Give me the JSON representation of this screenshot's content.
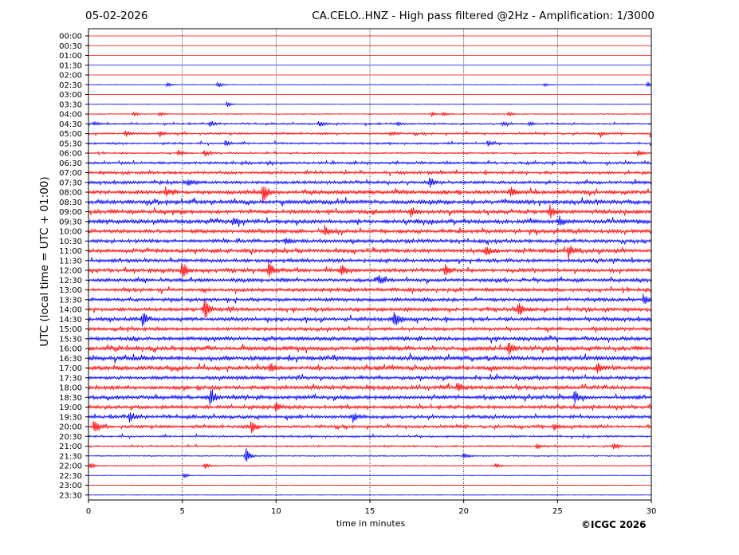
{
  "header": {
    "date": "05-02-2026",
    "title": "CA.CELO..HNZ - High pass filtered @2Hz - Amplification: 1/3000"
  },
  "footer": {
    "copyright": "©ICGC 2026"
  },
  "colors": {
    "red_trace": "#ff0000",
    "blue_trace": "#0000ff",
    "axis": "#000000",
    "grid": "#000000"
  },
  "chart_data": {
    "type": "line",
    "title": "CA.CELO..HNZ - High pass filtered @2Hz - Amplification: 1/3000",
    "xlabel": "time in minutes",
    "ylabel": "UTC (local time = UTC + 01:00)",
    "xlim": [
      0,
      30
    ],
    "x_ticks": [
      "0",
      "5",
      "10",
      "15",
      "20",
      "25",
      "30"
    ],
    "grid": "vertical dotted lines at 5, 10, 15, 20, 25 minutes",
    "rows": [
      "00:00",
      "00:30",
      "01:00",
      "01:30",
      "02:00",
      "02:30",
      "03:00",
      "03:30",
      "04:00",
      "04:30",
      "05:00",
      "05:30",
      "06:00",
      "06:30",
      "07:00",
      "07:30",
      "08:00",
      "08:30",
      "09:00",
      "09:30",
      "10:00",
      "10:30",
      "11:00",
      "11:30",
      "12:00",
      "12:30",
      "13:00",
      "13:30",
      "14:00",
      "14:30",
      "15:00",
      "15:30",
      "16:00",
      "16:30",
      "17:00",
      "17:30",
      "18:00",
      "18:30",
      "19:00",
      "19:30",
      "20:00",
      "20:30",
      "21:00",
      "21:30",
      "22:00",
      "22:30",
      "23:00",
      "23:30"
    ],
    "row_colors": [
      "red",
      "red",
      "red",
      "blue",
      "red",
      "blue",
      "red",
      "blue",
      "red",
      "blue",
      "red",
      "blue",
      "red",
      "blue",
      "red",
      "blue",
      "red",
      "blue",
      "red",
      "blue",
      "red",
      "blue",
      "red",
      "blue",
      "red",
      "blue",
      "red",
      "blue",
      "red",
      "blue",
      "red",
      "blue",
      "red",
      "blue",
      "red",
      "blue",
      "red",
      "blue",
      "red",
      "blue",
      "red",
      "blue",
      "red",
      "blue",
      "red",
      "blue",
      "red",
      "blue"
    ],
    "noise_level": [
      0.0,
      0.0,
      0.0,
      0.0,
      0.0,
      0.2,
      0.0,
      0.1,
      0.3,
      0.5,
      0.6,
      0.6,
      0.5,
      0.8,
      0.9,
      1.0,
      1.2,
      1.3,
      1.2,
      1.3,
      1.2,
      1.1,
      1.2,
      1.1,
      1.1,
      1.1,
      1.1,
      1.1,
      1.1,
      1.2,
      1.1,
      1.2,
      1.3,
      1.4,
      1.3,
      1.1,
      1.2,
      1.2,
      1.1,
      1.0,
      0.9,
      0.6,
      0.5,
      0.4,
      0.3,
      0.2,
      0.05,
      0.05
    ],
    "events": [
      {
        "row": "02:30",
        "t": 4.2,
        "amp": 3
      },
      {
        "row": "02:30",
        "t": 6.9,
        "amp": 4
      },
      {
        "row": "02:30",
        "t": 24.3,
        "amp": 2
      },
      {
        "row": "02:30",
        "t": 29.8,
        "amp": 4
      },
      {
        "row": "03:30",
        "t": 7.4,
        "amp": 4
      },
      {
        "row": "04:00",
        "t": 2.4,
        "amp": 3
      },
      {
        "row": "04:00",
        "t": 3.8,
        "amp": 3
      },
      {
        "row": "04:00",
        "t": 18.3,
        "amp": 3
      },
      {
        "row": "04:00",
        "t": 18.9,
        "amp": 3
      },
      {
        "row": "04:00",
        "t": 22.4,
        "amp": 3
      },
      {
        "row": "04:30",
        "t": 0.3,
        "amp": 3
      },
      {
        "row": "04:30",
        "t": 6.5,
        "amp": 4
      },
      {
        "row": "04:30",
        "t": 12.3,
        "amp": 4
      },
      {
        "row": "04:30",
        "t": 16.5,
        "amp": 3
      },
      {
        "row": "04:30",
        "t": 22.1,
        "amp": 3
      },
      {
        "row": "04:30",
        "t": 23.5,
        "amp": 3
      },
      {
        "row": "05:00",
        "t": 2.0,
        "amp": 5
      },
      {
        "row": "05:00",
        "t": 3.8,
        "amp": 4
      },
      {
        "row": "05:00",
        "t": 16.1,
        "amp": 3
      },
      {
        "row": "05:00",
        "t": 27.3,
        "amp": 3
      },
      {
        "row": "05:00",
        "t": 30.0,
        "amp": 4
      },
      {
        "row": "05:30",
        "t": 7.3,
        "amp": 4
      },
      {
        "row": "05:30",
        "t": 21.3,
        "amp": 4
      },
      {
        "row": "06:00",
        "t": 4.8,
        "amp": 4
      },
      {
        "row": "06:00",
        "t": 6.2,
        "amp": 4
      },
      {
        "row": "06:00",
        "t": 29.3,
        "amp": 4
      },
      {
        "row": "07:30",
        "t": 18.2,
        "amp": 8
      },
      {
        "row": "07:30",
        "t": 5.3,
        "amp": 5
      },
      {
        "row": "08:00",
        "t": 9.3,
        "amp": 14
      },
      {
        "row": "08:00",
        "t": 22.5,
        "amp": 6
      },
      {
        "row": "08:00",
        "t": 4.1,
        "amp": 5
      },
      {
        "row": "09:00",
        "t": 17.2,
        "amp": 6
      },
      {
        "row": "09:00",
        "t": 24.6,
        "amp": 8
      },
      {
        "row": "09:30",
        "t": 7.7,
        "amp": 7
      },
      {
        "row": "09:30",
        "t": 25.1,
        "amp": 7
      },
      {
        "row": "10:00",
        "t": 12.6,
        "amp": 6
      },
      {
        "row": "10:30",
        "t": 10.5,
        "amp": 6
      },
      {
        "row": "11:00",
        "t": 21.2,
        "amp": 8
      },
      {
        "row": "11:00",
        "t": 25.6,
        "amp": 8
      },
      {
        "row": "12:00",
        "t": 5.0,
        "amp": 12
      },
      {
        "row": "12:00",
        "t": 9.6,
        "amp": 13
      },
      {
        "row": "12:00",
        "t": 13.5,
        "amp": 8
      },
      {
        "row": "12:00",
        "t": 19.0,
        "amp": 10
      },
      {
        "row": "12:30",
        "t": 15.5,
        "amp": 6
      },
      {
        "row": "13:30",
        "t": 29.6,
        "amp": 7
      },
      {
        "row": "14:00",
        "t": 6.2,
        "amp": 14
      },
      {
        "row": "14:00",
        "t": 22.9,
        "amp": 11
      },
      {
        "row": "14:30",
        "t": 2.9,
        "amp": 11
      },
      {
        "row": "14:30",
        "t": 16.3,
        "amp": 12
      },
      {
        "row": "16:00",
        "t": 22.4,
        "amp": 10
      },
      {
        "row": "17:00",
        "t": 9.7,
        "amp": 7
      },
      {
        "row": "17:00",
        "t": 27.1,
        "amp": 6
      },
      {
        "row": "18:00",
        "t": 19.7,
        "amp": 6
      },
      {
        "row": "18:30",
        "t": 6.5,
        "amp": 11
      },
      {
        "row": "18:30",
        "t": 25.9,
        "amp": 8
      },
      {
        "row": "19:00",
        "t": 10.0,
        "amp": 7
      },
      {
        "row": "19:30",
        "t": 2.2,
        "amp": 6
      },
      {
        "row": "19:30",
        "t": 14.1,
        "amp": 6
      },
      {
        "row": "20:00",
        "t": 0.3,
        "amp": 9
      },
      {
        "row": "20:00",
        "t": 8.7,
        "amp": 10
      },
      {
        "row": "20:00",
        "t": 24.8,
        "amp": 5
      },
      {
        "row": "21:00",
        "t": 28.0,
        "amp": 5
      },
      {
        "row": "21:00",
        "t": 23.9,
        "amp": 4
      },
      {
        "row": "21:30",
        "t": 8.4,
        "amp": 10
      },
      {
        "row": "21:30",
        "t": 20.0,
        "amp": 4
      },
      {
        "row": "22:00",
        "t": 0.1,
        "amp": 4
      },
      {
        "row": "22:00",
        "t": 6.2,
        "amp": 4
      },
      {
        "row": "22:00",
        "t": 21.7,
        "amp": 3
      },
      {
        "row": "22:30",
        "t": 5.1,
        "amp": 3
      }
    ]
  }
}
